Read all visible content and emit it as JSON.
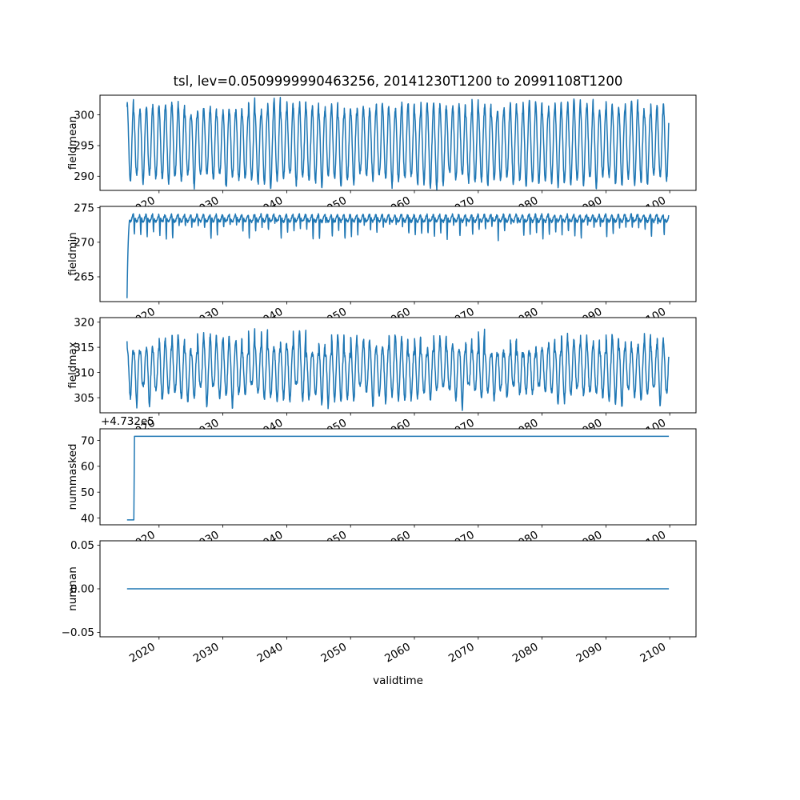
{
  "figure": {
    "title": "tsl, lev=0.0509999990463256, 20141230T1200 to 20991108T1200",
    "xlabel": "validtime",
    "line_color": "#1f77b4",
    "background_color": "#ffffff",
    "axis_color": "#000000"
  },
  "chart_data": {
    "type": "line",
    "title": "tsl, lev=0.0509999990463256, 20141230T1200 to 20991108T1200",
    "xlabel": "validtime",
    "xlim": [
      2010.75,
      2104.11
    ],
    "x_ticks": [
      2020,
      2030,
      2040,
      2050,
      2060,
      2070,
      2080,
      2090,
      2100
    ],
    "x_tick_labels": [
      "2020",
      "2030",
      "2040",
      "2050",
      "2060",
      "2070",
      "2080",
      "2090",
      "2100"
    ],
    "x_tick_rotation_deg": 30,
    "x_data_start": 2014.99,
    "x_data_end": 2099.86,
    "grid": false,
    "legend": null,
    "subplots": [
      {
        "name": "fieldmean",
        "ylabel": "fieldmean",
        "ylim": [
          287.7,
          303.2
        ],
        "yticks": [
          290,
          295,
          300
        ],
        "ytick_labels": [
          "290",
          "295",
          "300"
        ],
        "value_range": {
          "min": 288.3,
          "max": 302.6
        },
        "pattern": "annual seasonal oscillation, ~85 cycles, peaks ~299-302.5, troughs ~288.3-291",
        "series": {
          "kind": "seasonal",
          "base": 295.3,
          "amplitude": 5.9,
          "noise": 0.8,
          "extreme_jitter": 1.3,
          "samples_per_year": 27,
          "seed": 11
        }
      },
      {
        "name": "fieldmin",
        "ylabel": "fieldmin",
        "ylim": [
          261.4,
          275.2
        ],
        "yticks": [
          265,
          270,
          275
        ],
        "ytick_labels": [
          "265",
          "270",
          "275"
        ],
        "value_range": {
          "min": 261.9,
          "max": 274.6
        },
        "pattern": "starts near 262, rises within first year to a 272-274.5 plateau with sharp annual dips to ~269-271",
        "series": {
          "kind": "seasonal_min",
          "base": 273.5,
          "wiggle": 0.5,
          "dip_depth": 2.3,
          "dip_jitter": 1.2,
          "noise": 0.35,
          "ramp_from": 261.9,
          "ramp_tau": 0.2,
          "samples_per_year": 27,
          "seed": 23
        }
      },
      {
        "name": "fieldmax",
        "ylabel": "fieldmax",
        "ylim": [
          302.0,
          320.9
        ],
        "yticks": [
          305,
          310,
          315,
          320
        ],
        "ytick_labels": [
          "305",
          "310",
          "315",
          "320"
        ],
        "value_range": {
          "min": 303.2,
          "max": 319.2
        },
        "pattern": "annual seasonal oscillation, peaks vary 312-319, troughs 303-306.5",
        "series": {
          "kind": "seasonal",
          "base": 310.7,
          "amplitude": 5.2,
          "noise": 1.0,
          "extreme_jitter": 2.6,
          "samples_per_year": 27,
          "seed": 37
        }
      },
      {
        "name": "nummasked",
        "ylabel": "nummasked",
        "ylim": [
          37.4,
          74.5
        ],
        "yticks": [
          40,
          50,
          60,
          70
        ],
        "ytick_labels": [
          "40",
          "50",
          "60",
          "70"
        ],
        "y_offset_text": "+4.732e5",
        "pattern": "constant ~473239 until early 2016, then steps up to ~473271.5 for the rest of the record",
        "series": {
          "kind": "points",
          "points": [
            [
              2014.99,
              39.3
            ],
            [
              2016.05,
              39.3
            ],
            [
              2016.15,
              71.6
            ],
            [
              2099.86,
              71.6
            ]
          ]
        }
      },
      {
        "name": "numnan",
        "ylabel": "numnan",
        "ylim": [
          -0.055,
          0.055
        ],
        "yticks": [
          -0.05,
          0.0,
          0.05
        ],
        "ytick_labels": [
          "−0.05",
          "0.00",
          "0.05"
        ],
        "pattern": "constant zero over the whole record",
        "series": {
          "kind": "points",
          "points": [
            [
              2014.99,
              0
            ],
            [
              2099.86,
              0
            ]
          ]
        }
      }
    ]
  }
}
